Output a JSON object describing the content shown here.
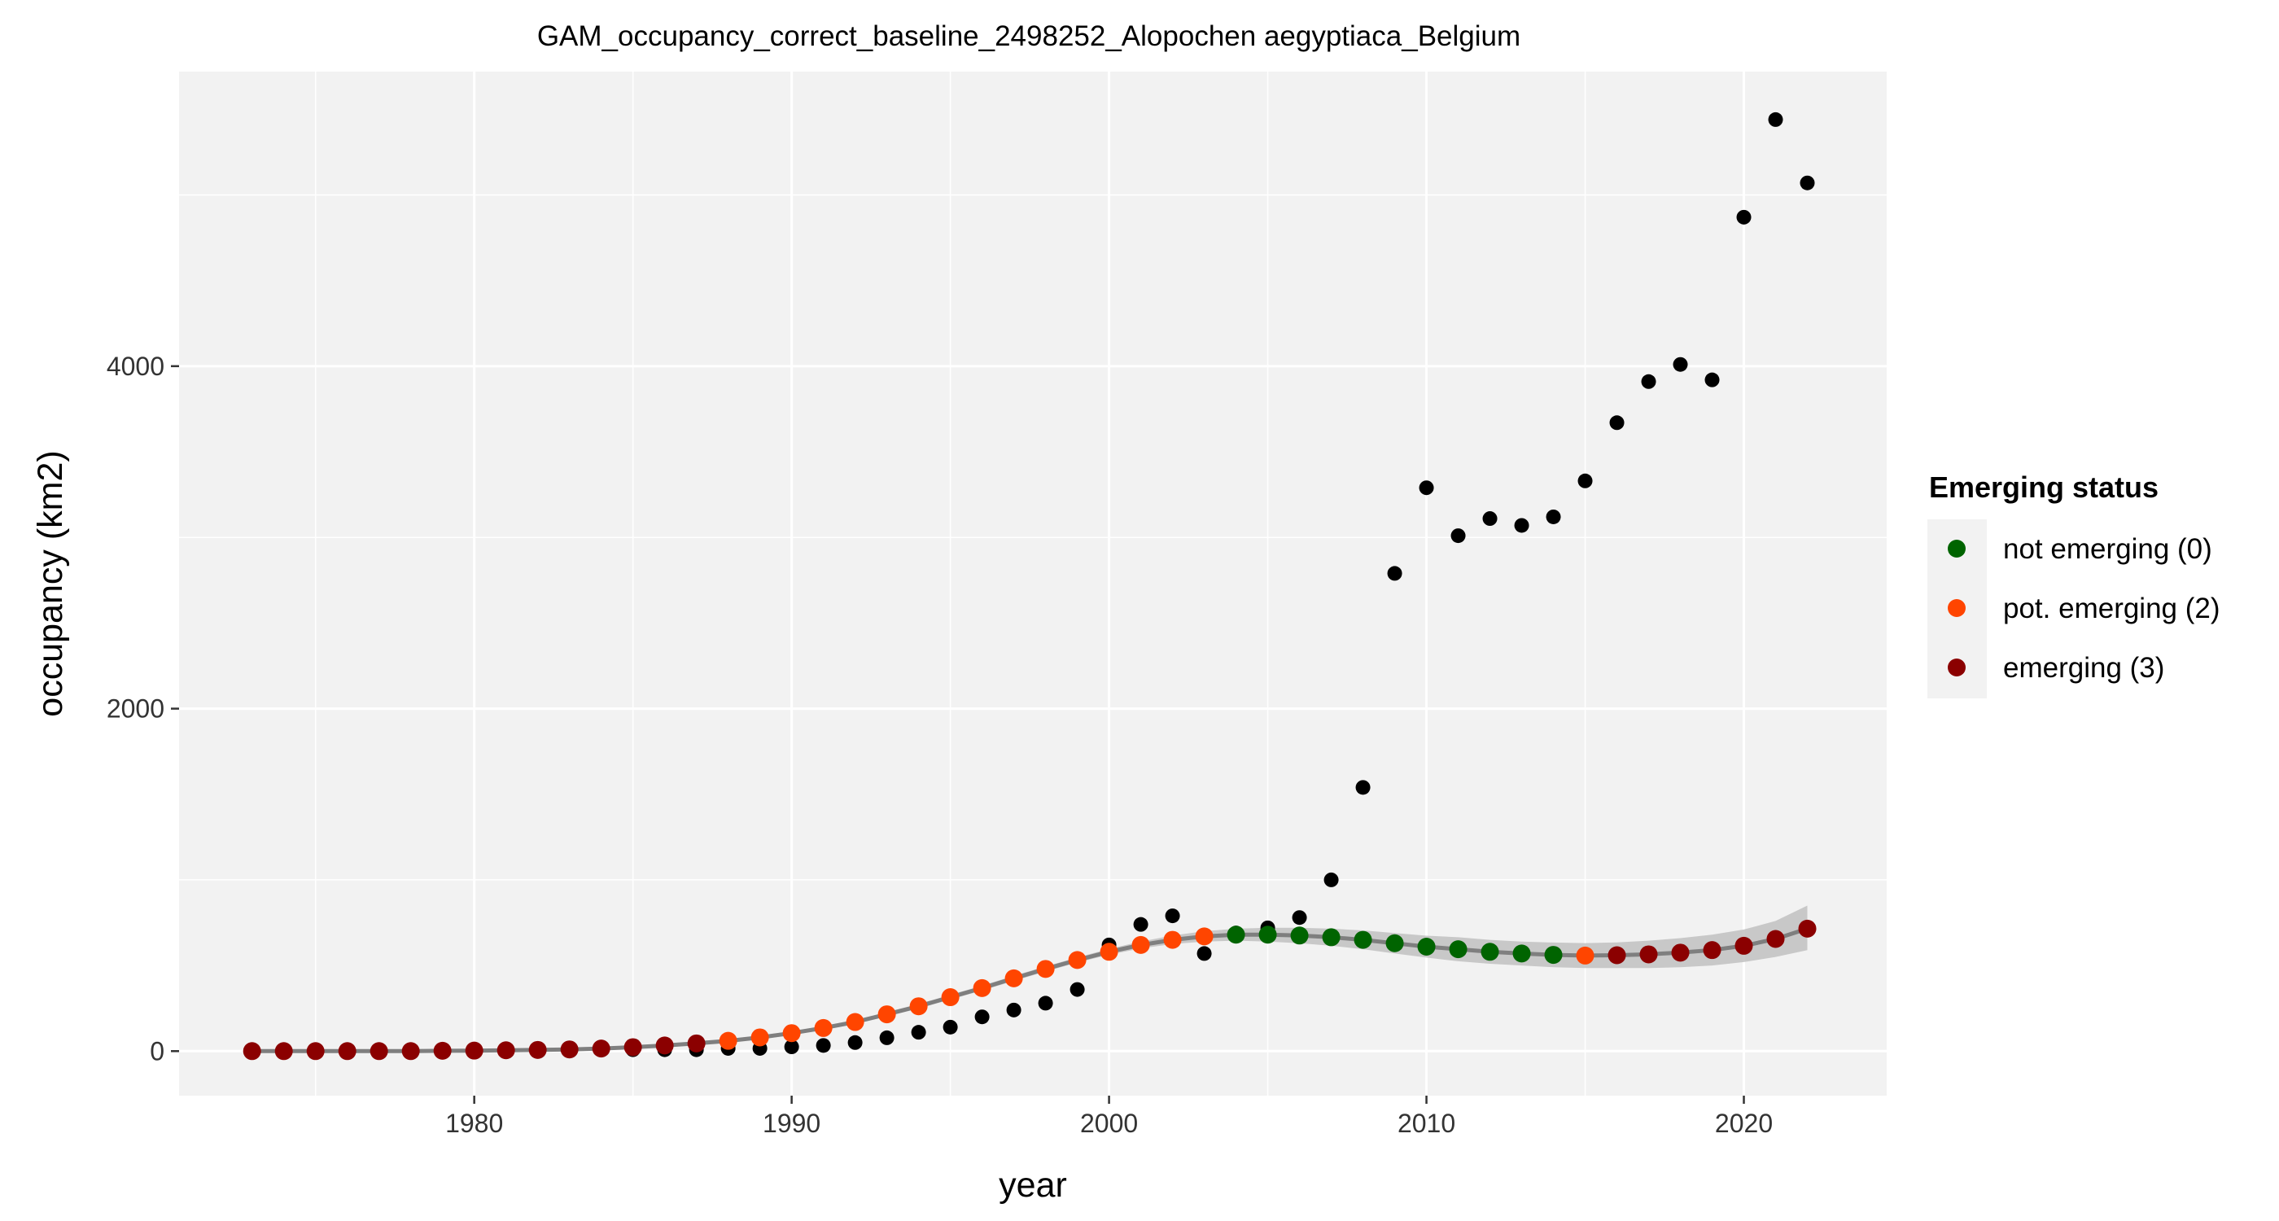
{
  "chart_data": {
    "type": "scatter",
    "title": "GAM_occupancy_correct_baseline_2498252_Alopochen aegyptiaca_Belgium",
    "xlabel": "year",
    "ylabel": "occupancy (km2)",
    "xlim": [
      1970.7,
      2024.5
    ],
    "ylim": [
      -260,
      5720
    ],
    "x_ticks": [
      1980,
      1990,
      2000,
      2010,
      2020
    ],
    "y_ticks": [
      0,
      2000,
      4000
    ],
    "grid": true,
    "legend": {
      "title": "Emerging status",
      "position": "right",
      "entries": [
        {
          "label": "not emerging (0)",
          "color": "#006400"
        },
        {
          "label": "pot. emerging (2)",
          "color": "#FF4500"
        },
        {
          "label": "emerging (3)",
          "color": "#8B0000"
        }
      ]
    },
    "colors": {
      "panel": "#f2f2f2",
      "grid": "#ffffff",
      "observed": "#000000",
      "fit_line": "#7f7f7f",
      "ribbon": "#bdbdbd"
    },
    "observed": {
      "x": [
        1973,
        1974,
        1975,
        1976,
        1977,
        1978,
        1979,
        1980,
        1981,
        1982,
        1983,
        1984,
        1985,
        1986,
        1987,
        1988,
        1989,
        1990,
        1991,
        1992,
        1993,
        1994,
        1995,
        1996,
        1997,
        1998,
        1999,
        2000,
        2001,
        2002,
        2003,
        2004,
        2005,
        2006,
        2007,
        2008,
        2009,
        2010,
        2011,
        2012,
        2013,
        2014,
        2015,
        2016,
        2017,
        2018,
        2019,
        2020,
        2021,
        2022
      ],
      "y": [
        0,
        0,
        0,
        0,
        0,
        0,
        0,
        0,
        0,
        0,
        4,
        8,
        8,
        8,
        8,
        16,
        16,
        25,
        33,
        50,
        78,
        110,
        140,
        200,
        240,
        280,
        360,
        620,
        740,
        790,
        570,
        690,
        720,
        780,
        1000,
        1540,
        2790,
        3290,
        3010,
        3110,
        3070,
        3120,
        3330,
        3670,
        3910,
        4010,
        3920,
        4870,
        5440,
        5070
      ]
    },
    "fit": {
      "x": [
        1973,
        1974,
        1975,
        1976,
        1977,
        1978,
        1979,
        1980,
        1981,
        1982,
        1983,
        1984,
        1985,
        1986,
        1987,
        1988,
        1989,
        1990,
        1991,
        1992,
        1993,
        1994,
        1995,
        1996,
        1997,
        1998,
        1999,
        2000,
        2001,
        2002,
        2003,
        2004,
        2005,
        2006,
        2007,
        2008,
        2009,
        2010,
        2011,
        2012,
        2013,
        2014,
        2015,
        2016,
        2017,
        2018,
        2019,
        2020,
        2021,
        2022
      ],
      "y": [
        0,
        0,
        0,
        0,
        0,
        0,
        2,
        3,
        5,
        7,
        10,
        15,
        23,
        33,
        45,
        60,
        80,
        105,
        135,
        170,
        215,
        262,
        315,
        368,
        425,
        480,
        532,
        580,
        620,
        650,
        670,
        680,
        680,
        675,
        665,
        650,
        630,
        610,
        595,
        580,
        570,
        562,
        558,
        560,
        565,
        575,
        590,
        615,
        655,
        715
      ],
      "lower": [
        0,
        0,
        0,
        0,
        0,
        0,
        0,
        0,
        0,
        0,
        0,
        5,
        13,
        23,
        35,
        50,
        69,
        94,
        124,
        159,
        202,
        249,
        301,
        354,
        410,
        465,
        517,
        563,
        600,
        625,
        640,
        645,
        640,
        630,
        615,
        595,
        570,
        546,
        525,
        510,
        500,
        490,
        485,
        485,
        485,
        490,
        500,
        520,
        550,
        590
      ],
      "upper": [
        0,
        0,
        0,
        0,
        0,
        0,
        4,
        6,
        8,
        11,
        15,
        25,
        33,
        43,
        55,
        70,
        91,
        116,
        146,
        181,
        228,
        275,
        329,
        382,
        440,
        495,
        547,
        597,
        640,
        675,
        700,
        715,
        720,
        720,
        715,
        705,
        690,
        674,
        665,
        650,
        640,
        634,
        631,
        635,
        645,
        660,
        680,
        710,
        760,
        850
      ],
      "status": [
        3,
        3,
        3,
        3,
        3,
        3,
        3,
        3,
        3,
        3,
        3,
        3,
        3,
        3,
        3,
        2,
        2,
        2,
        2,
        2,
        2,
        2,
        2,
        2,
        2,
        2,
        2,
        2,
        2,
        2,
        2,
        0,
        0,
        0,
        0,
        0,
        0,
        0,
        0,
        0,
        0,
        0,
        2,
        3,
        3,
        3,
        3,
        3,
        3,
        3
      ]
    }
  }
}
